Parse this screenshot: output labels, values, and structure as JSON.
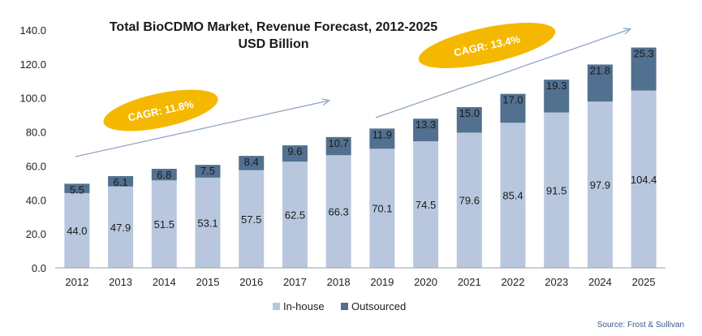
{
  "chart_data": {
    "type": "bar",
    "stacked": true,
    "title": "Total BioCDMO Market, Revenue Forecast, 2012-2025",
    "subtitle": "USD Billion",
    "categories": [
      "2012",
      "2013",
      "2014",
      "2015",
      "2016",
      "2017",
      "2018",
      "2019",
      "2020",
      "2021",
      "2022",
      "2023",
      "2024",
      "2025"
    ],
    "series": [
      {
        "name": "In-house",
        "color": "#b8c7dd",
        "values": [
          44.0,
          47.9,
          51.5,
          53.1,
          57.5,
          62.5,
          66.3,
          70.1,
          74.5,
          79.6,
          85.4,
          91.5,
          97.9,
          104.4
        ]
      },
      {
        "name": "Outsourced",
        "color": "#52708f",
        "values": [
          5.5,
          6.1,
          6.8,
          7.5,
          8.4,
          9.6,
          10.7,
          11.9,
          13.3,
          15.0,
          17.0,
          19.3,
          21.8,
          25.3
        ]
      }
    ],
    "ylim": [
      0,
      140
    ],
    "yticks": [
      "0.0",
      "20.0",
      "40.0",
      "60.0",
      "80.0",
      "100.0",
      "120.0",
      "140.0"
    ],
    "grid": false,
    "legend": "bottom",
    "annotations": [
      {
        "text": "CAGR: 11.8%",
        "color": "#f5b800"
      },
      {
        "text": "CAGR: 13.4%",
        "color": "#f5b800"
      }
    ],
    "source": "Source: Frost & Sullivan"
  }
}
